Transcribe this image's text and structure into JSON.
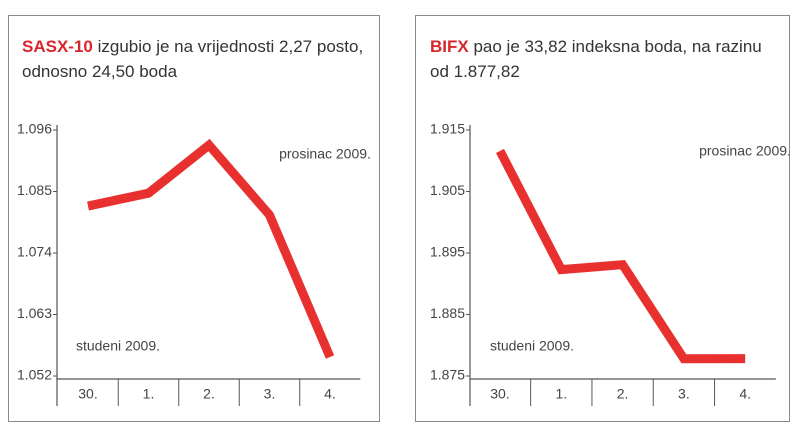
{
  "chart_data": [
    {
      "type": "line",
      "title": "SASX-10",
      "subtitle": "izgubio je na vrijednosti 2,27 posto, odnosno 24,50 boda",
      "categories": [
        "30.",
        "1.",
        "2.",
        "3.",
        "4."
      ],
      "values": [
        1082.4,
        1084.7,
        1093.3,
        1080.8,
        1055.4
      ],
      "color": "#e8312f",
      "ylim": [
        1052,
        1096
      ],
      "yticks": [
        {
          "value": 1052,
          "label": "1.052"
        },
        {
          "value": 1063,
          "label": "1.063"
        },
        {
          "value": 1074,
          "label": "1.074"
        },
        {
          "value": 1085,
          "label": "1.085"
        },
        {
          "value": 1096,
          "label": "1.096"
        }
      ],
      "annotations": [
        "prosinac 2009.",
        "studeni 2009."
      ]
    },
    {
      "type": "line",
      "title": "BIFX",
      "subtitle": "pao je 33,82 indeksna boda, na razinu od 1.877,82",
      "categories": [
        "30.",
        "1.",
        "2.",
        "3.",
        "4."
      ],
      "values": [
        1911.6,
        1892.3,
        1893.1,
        1877.8,
        1877.82
      ],
      "color": "#e8312f",
      "ylim": [
        1875,
        1915
      ],
      "yticks": [
        {
          "value": 1875,
          "label": "1.875"
        },
        {
          "value": 1885,
          "label": "1.885"
        },
        {
          "value": 1895,
          "label": "1.895"
        },
        {
          "value": 1905,
          "label": "1.905"
        },
        {
          "value": 1915,
          "label": "1.915"
        }
      ],
      "annotations": [
        "prosinac 2009.",
        "studeni 2009."
      ]
    }
  ]
}
